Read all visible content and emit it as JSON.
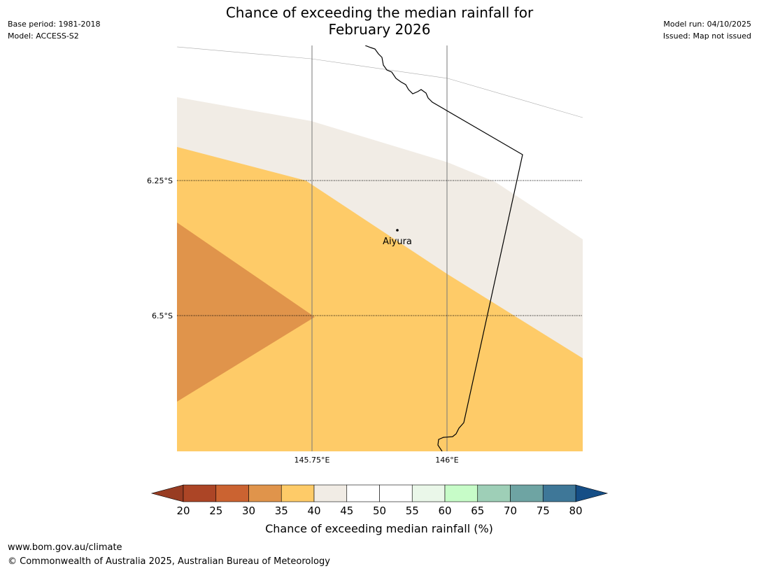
{
  "header": {
    "title_line1": "Chance of exceeding the median rainfall for",
    "title_line2": "February 2026",
    "base_period": "Base period: 1981-2018",
    "model": "Model: ACCESS-S2",
    "model_run": "Model run: 04/10/2025",
    "issued": "Issued: Map not issued"
  },
  "map": {
    "lat_labels": [
      "6.25°S",
      "6.5°S"
    ],
    "lon_labels": [
      "145.75°E",
      "146°E"
    ],
    "place": {
      "name": "Aiyura"
    }
  },
  "colorbar": {
    "title": "Chance of exceeding median rainfall (%)",
    "ticks": [
      "20",
      "25",
      "30",
      "35",
      "40",
      "45",
      "50",
      "55",
      "60",
      "65",
      "70",
      "75",
      "80"
    ],
    "colors": [
      "#ac4526",
      "#cb6331",
      "#e0944b",
      "#fecb68",
      "#f1ece5",
      "#ffffff",
      "#ffffff",
      "#eaf7e9",
      "#c7fcc8",
      "#9ecfb7",
      "#6ea4a3",
      "#3e7798",
      "#1a4f83"
    ],
    "under_color": "#983c22",
    "over_color": "#154e86"
  },
  "footer": {
    "url": "www.bom.gov.au/climate",
    "copyright": "© Commonwealth of Australia 2025, Australian Bureau of Meteorology"
  }
}
